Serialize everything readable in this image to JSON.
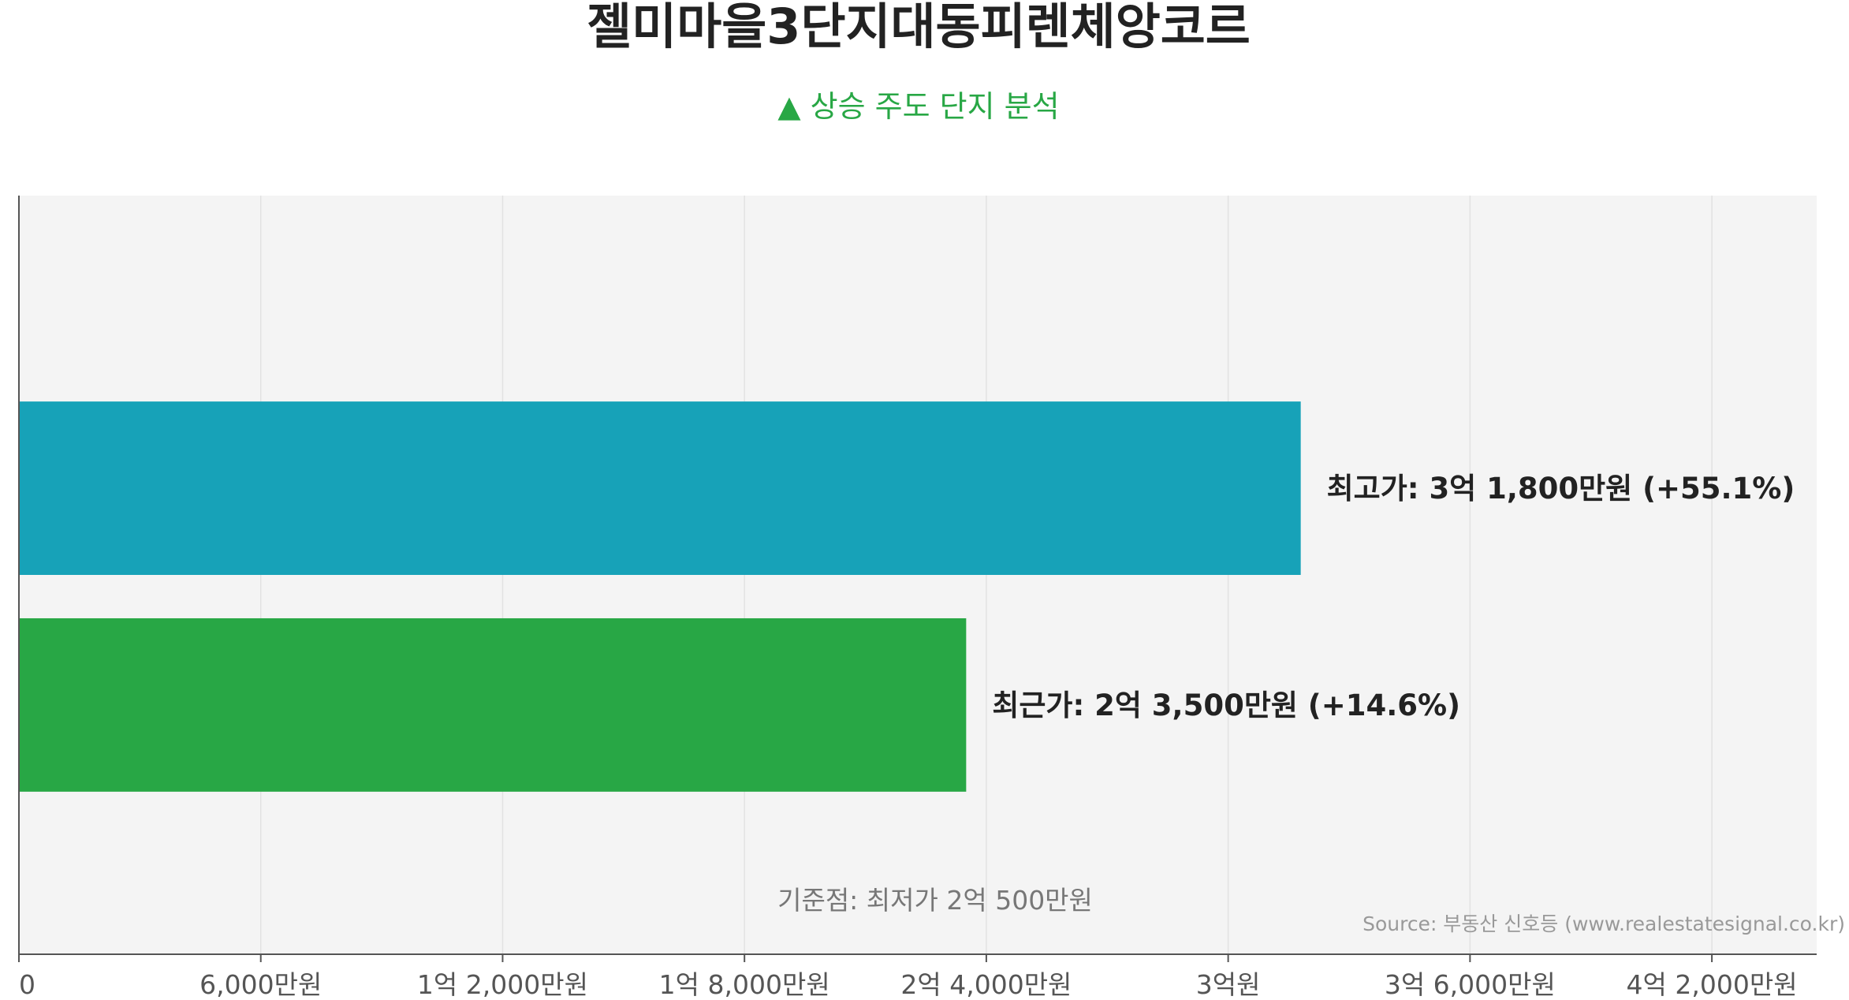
{
  "chart_data": {
    "type": "bar",
    "orientation": "horizontal",
    "title": "젤미마을3단지대동피렌체앙코르",
    "subtitle": "▲ 상승 주도 단지 분석",
    "categories": [
      "최고가",
      "최근가"
    ],
    "values": [
      31800,
      23500
    ],
    "value_unit": "만원",
    "bar_labels": [
      "최고가: 3억 1,800만원 (+55.1%)",
      "최근가: 2억 3,500만원 (+14.6%)"
    ],
    "colors": [
      "#17a2b8",
      "#28a745"
    ],
    "xlim": [
      0,
      44600
    ],
    "x_ticks": [
      {
        "value": 0,
        "label": "0"
      },
      {
        "value": 6000,
        "label": "6,000만원"
      },
      {
        "value": 12000,
        "label": "1억 2,000만원"
      },
      {
        "value": 18000,
        "label": "1억 8,000만원"
      },
      {
        "value": 24000,
        "label": "2억 4,000만원"
      },
      {
        "value": 30000,
        "label": "3억원"
      },
      {
        "value": 36000,
        "label": "3억 6,000만원"
      },
      {
        "value": 42000,
        "label": "4억 2,000만원"
      }
    ],
    "grid": true,
    "reference_text": "기준점: 최저가 2억 500만원",
    "source": "Source: 부동산 신호등 (www.realestatesignal.co.kr)",
    "colors_style": {
      "title": "#222222",
      "subtitle": "#28a745",
      "plot_background": "#f4f4f4",
      "grid": "#e2e2e2",
      "axis": "#555555",
      "tick_text": "#555555",
      "label_text": "#222222",
      "reference_text": "#777777",
      "source_text": "#999999"
    }
  }
}
